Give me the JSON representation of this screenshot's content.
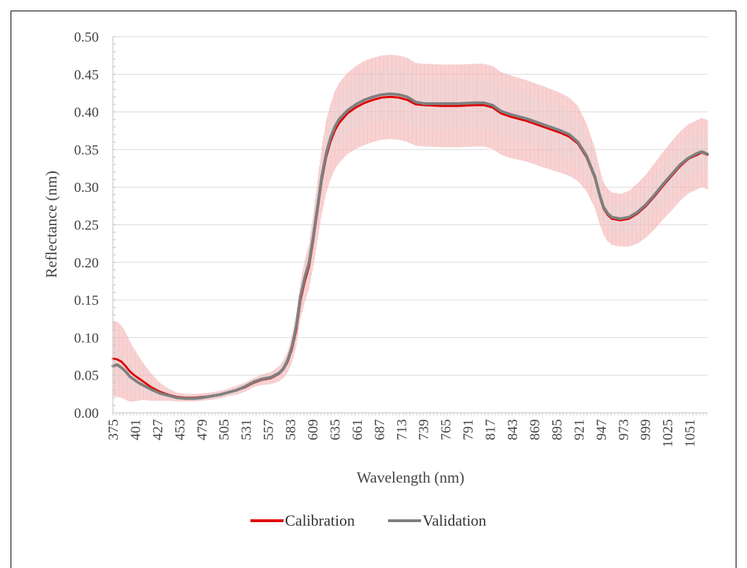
{
  "chart_data": {
    "type": "line",
    "xlabel": "Wavelength (nm)",
    "ylabel": "Reflectance (nm)",
    "ylim": [
      0,
      0.5
    ],
    "y_ticks": [
      "0.00",
      "0.05",
      "0.10",
      "0.15",
      "0.20",
      "0.25",
      "0.30",
      "0.35",
      "0.40",
      "0.45",
      "0.50"
    ],
    "x_range": [
      375,
      1072
    ],
    "x_ticks": [
      "375",
      "401",
      "427",
      "453",
      "479",
      "505",
      "531",
      "557",
      "583",
      "609",
      "635",
      "661",
      "687",
      "713",
      "739",
      "765",
      "791",
      "817",
      "843",
      "869",
      "895",
      "921",
      "947",
      "973",
      "999",
      "1025",
      "1051"
    ],
    "grid": "horizontal",
    "legend_position": "bottom",
    "colors": {
      "calibration": "#e00000",
      "validation": "#7f7f7f",
      "cal_error": "#f4b6b6",
      "val_error": "#d9d9d9"
    },
    "series": [
      {
        "name": "Calibration",
        "x": [
          375,
          380,
          385,
          390,
          395,
          400,
          405,
          410,
          420,
          430,
          440,
          450,
          460,
          470,
          480,
          490,
          500,
          510,
          520,
          530,
          540,
          550,
          560,
          570,
          575,
          580,
          585,
          590,
          595,
          600,
          605,
          610,
          615,
          620,
          625,
          630,
          635,
          640,
          650,
          660,
          670,
          680,
          690,
          700,
          710,
          720,
          730,
          740,
          760,
          780,
          800,
          810,
          820,
          830,
          840,
          860,
          880,
          900,
          910,
          920,
          930,
          940,
          945,
          950,
          955,
          960,
          970,
          980,
          990,
          1000,
          1010,
          1020,
          1030,
          1040,
          1050,
          1060,
          1065,
          1068,
          1072
        ],
        "y": [
          0.072,
          0.071,
          0.068,
          0.062,
          0.055,
          0.05,
          0.046,
          0.042,
          0.034,
          0.028,
          0.024,
          0.021,
          0.02,
          0.02,
          0.021,
          0.022,
          0.024,
          0.027,
          0.03,
          0.034,
          0.04,
          0.044,
          0.046,
          0.052,
          0.058,
          0.068,
          0.085,
          0.11,
          0.15,
          0.175,
          0.195,
          0.23,
          0.27,
          0.31,
          0.34,
          0.36,
          0.375,
          0.385,
          0.398,
          0.406,
          0.412,
          0.416,
          0.419,
          0.42,
          0.419,
          0.416,
          0.41,
          0.409,
          0.408,
          0.408,
          0.409,
          0.409,
          0.406,
          0.398,
          0.394,
          0.388,
          0.38,
          0.372,
          0.367,
          0.358,
          0.34,
          0.312,
          0.29,
          0.272,
          0.263,
          0.258,
          0.256,
          0.258,
          0.265,
          0.275,
          0.288,
          0.302,
          0.315,
          0.328,
          0.338,
          0.343,
          0.346,
          0.345,
          0.343
        ],
        "error": [
          0.05,
          0.05,
          0.048,
          0.045,
          0.04,
          0.035,
          0.03,
          0.025,
          0.018,
          0.012,
          0.008,
          0.006,
          0.005,
          0.005,
          0.005,
          0.005,
          0.005,
          0.005,
          0.006,
          0.006,
          0.006,
          0.007,
          0.008,
          0.01,
          0.012,
          0.014,
          0.018,
          0.022,
          0.025,
          0.028,
          0.03,
          0.035,
          0.04,
          0.045,
          0.048,
          0.05,
          0.052,
          0.053,
          0.054,
          0.055,
          0.056,
          0.056,
          0.056,
          0.056,
          0.056,
          0.056,
          0.055,
          0.055,
          0.055,
          0.055,
          0.055,
          0.055,
          0.055,
          0.055,
          0.055,
          0.054,
          0.054,
          0.053,
          0.052,
          0.05,
          0.045,
          0.04,
          0.037,
          0.035,
          0.035,
          0.035,
          0.035,
          0.037,
          0.04,
          0.042,
          0.044,
          0.045,
          0.046,
          0.046,
          0.046,
          0.046,
          0.046,
          0.046,
          0.046
        ]
      },
      {
        "name": "Validation",
        "x": [
          375,
          380,
          385,
          390,
          395,
          400,
          405,
          410,
          420,
          430,
          440,
          450,
          460,
          470,
          480,
          490,
          500,
          510,
          520,
          530,
          540,
          550,
          560,
          570,
          575,
          580,
          585,
          590,
          595,
          600,
          605,
          610,
          615,
          620,
          625,
          630,
          635,
          640,
          650,
          660,
          670,
          680,
          690,
          700,
          710,
          720,
          730,
          740,
          760,
          780,
          800,
          810,
          820,
          830,
          840,
          860,
          880,
          900,
          910,
          920,
          930,
          940,
          945,
          950,
          955,
          960,
          970,
          980,
          990,
          1000,
          1010,
          1020,
          1030,
          1040,
          1050,
          1060,
          1065,
          1068,
          1072
        ],
        "y": [
          0.062,
          0.064,
          0.06,
          0.055,
          0.048,
          0.044,
          0.04,
          0.037,
          0.031,
          0.026,
          0.023,
          0.02,
          0.019,
          0.019,
          0.02,
          0.022,
          0.024,
          0.027,
          0.03,
          0.035,
          0.041,
          0.045,
          0.047,
          0.053,
          0.059,
          0.07,
          0.088,
          0.115,
          0.155,
          0.18,
          0.2,
          0.235,
          0.275,
          0.315,
          0.345,
          0.365,
          0.38,
          0.39,
          0.402,
          0.41,
          0.416,
          0.42,
          0.423,
          0.424,
          0.423,
          0.42,
          0.413,
          0.411,
          0.411,
          0.411,
          0.412,
          0.412,
          0.409,
          0.401,
          0.397,
          0.391,
          0.383,
          0.375,
          0.37,
          0.36,
          0.342,
          0.314,
          0.292,
          0.274,
          0.265,
          0.26,
          0.258,
          0.26,
          0.267,
          0.277,
          0.29,
          0.304,
          0.317,
          0.33,
          0.339,
          0.345,
          0.347,
          0.346,
          0.344
        ],
        "error": [
          0.02,
          0.02,
          0.02,
          0.018,
          0.016,
          0.014,
          0.012,
          0.01,
          0.008,
          0.006,
          0.004,
          0.003,
          0.003,
          0.003,
          0.003,
          0.003,
          0.003,
          0.003,
          0.004,
          0.004,
          0.004,
          0.004,
          0.005,
          0.006,
          0.007,
          0.008,
          0.01,
          0.012,
          0.014,
          0.016,
          0.018,
          0.02,
          0.022,
          0.024,
          0.026,
          0.028,
          0.03,
          0.031,
          0.032,
          0.033,
          0.034,
          0.034,
          0.034,
          0.034,
          0.034,
          0.034,
          0.034,
          0.034,
          0.034,
          0.034,
          0.034,
          0.034,
          0.033,
          0.033,
          0.033,
          0.033,
          0.032,
          0.032,
          0.031,
          0.03,
          0.028,
          0.025,
          0.022,
          0.02,
          0.02,
          0.02,
          0.02,
          0.02,
          0.021,
          0.022,
          0.023,
          0.024,
          0.025,
          0.025,
          0.025,
          0.025,
          0.025,
          0.025,
          0.025
        ]
      }
    ]
  }
}
